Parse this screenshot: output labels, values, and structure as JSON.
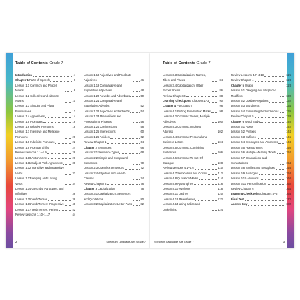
{
  "pages": [
    {
      "title": "Table of Contents",
      "grade": "Grade 7",
      "footer": "Spectrum Language Arts Grade 7",
      "page_number": "2",
      "columns": [
        [
          {
            "lead": "Introduction",
            "page": "4"
          },
          {
            "lead": "Chapter 1",
            "text": "Parts of Speech",
            "page": "6"
          },
          {
            "text": "Lesson 1.1 Common and Proper Nouns",
            "page": "6"
          },
          {
            "text": "Lesson 1.2 Collective and Abstract Nouns",
            "page": "10"
          },
          {
            "text": "Lesson 1.3 Singular and Plural Possessives",
            "page": "12"
          },
          {
            "text": "Lesson 1.4 Appositives",
            "page": "14"
          },
          {
            "text": "Lesson 1.5 Pronouns",
            "page": "16"
          },
          {
            "text": "Lesson 1.6 Relative Pronouns",
            "page": "18"
          },
          {
            "text": "Lesson 1.7 Intensive and Reflexive Pronouns",
            "page": "20"
          },
          {
            "text": "Lesson 1.8 Indefinite Pronouns",
            "page": "22"
          },
          {
            "text": "Lesson 1.9 Pronoun Shifts",
            "page": "24"
          },
          {
            "text": "Review Lessons 1.1–1.9",
            "page": "26"
          },
          {
            "text": "Lesson 1.10 Action Verbs",
            "page": "28"
          },
          {
            "text": "Lesson 1.11 Subject-Verb Agreement",
            "page": "30"
          },
          {
            "text": "Lesson 1.12 Transitive and Intransitive Verbs",
            "page": "32"
          },
          {
            "text": "Lesson 1.13 Helping and Linking Verbs",
            "page": "34"
          },
          {
            "text": "Lesson 1.14 Gerunds, Participles, and Infinitives",
            "page": "36"
          },
          {
            "text": "Lesson 1.15 Verb Tenses",
            "page": "38"
          },
          {
            "text": "Lesson 1.16 Verb Tenses: Progressive",
            "page": "40"
          },
          {
            "text": "Lesson 1.17 Verb Tenses: Perfect",
            "page": "42"
          },
          {
            "text": "Review Lessons 1.10–1.17",
            "page": "44"
          }
        ],
        [
          {
            "text": "Lesson 1.18 Adjectives and Predicate Adjectives",
            "page": "46"
          },
          {
            "text": "Lesson 1.19 Comparative and Superlative Adjectives",
            "page": "48"
          },
          {
            "text": "Lesson 1.20 Adverbs and Adverbials",
            "page": "50"
          },
          {
            "text": "Lesson 1.21 Comparative and Superlative Adverbs",
            "page": "52"
          },
          {
            "text": "Lesson 1.22 Adjectives and Adverbs",
            "page": "54"
          },
          {
            "text": "Lesson 1.23 Prepositions and Prepositional Phrases",
            "page": "56"
          },
          {
            "text": "Lesson 1.24 Conjunctions",
            "page": "58"
          },
          {
            "text": "Lesson 1.25 Interjections",
            "page": "60"
          },
          {
            "text": "Lesson 1.26 Articles",
            "page": "62"
          },
          {
            "text": "Review Chapter 1",
            "page": "64"
          },
          {
            "lead": "Chapter 2",
            "text": "Sentences",
            "page": "66"
          },
          {
            "text": "Lesson 2.1 Sentence Types",
            "page": "68"
          },
          {
            "text": "Lesson 2.2 Simple and Compound Sentences",
            "page": "70"
          },
          {
            "text": "Lesson 2.3 Complex Sentences",
            "page": "72"
          },
          {
            "text": "Lesson 2.4 Adjective and Adverb Clauses",
            "page": "74"
          },
          {
            "text": "Review Chapter 2",
            "page": "76"
          },
          {
            "lead": "Chapter 3",
            "text": "Capitalization",
            "page": "78"
          },
          {
            "text": "Lesson 3.1 Capitalization: Sentences and Quotations",
            "page": "80"
          },
          {
            "text": "Lesson 3.2 Capitalization: Letter Parts",
            "page": "82"
          }
        ]
      ]
    },
    {
      "title": "Table of Contents",
      "grade": "Grade 7",
      "footer": "Spectrum Language Arts Grade 7",
      "page_number": "3",
      "columns": [
        [
          {
            "text": "Lesson 3.3 Capitalization: Names, Titles, and Places",
            "page": "84"
          },
          {
            "text": "Lesson 3.4 Capitalization: Other Proper Nouns",
            "page": "86"
          },
          {
            "text": "Review Chapter 3",
            "page": "88"
          },
          {
            "lead": "Learning Checkpoint",
            "text": "Chapters 1–3",
            "page": "90"
          },
          {
            "lead": "Chapter 4",
            "text": "Punctuation",
            "page": "96"
          },
          {
            "text": "Lesson 4.1 Ending Punctuation Marks",
            "page": "98"
          },
          {
            "text": "Lesson 4.2 Commas: Series, Multiple Adjectives",
            "page": "100"
          },
          {
            "text": "Lesson 4.3 Commas: In Direct Address",
            "page": "102"
          },
          {
            "text": "Lesson 4.4 Commas: Personal and Business Letters",
            "page": "104"
          },
          {
            "text": "Lesson 4.5 Commas: Combining Sentences",
            "page": "106"
          },
          {
            "text": "Lesson 4.6 Commas: To Set Off Dialogue",
            "page": "108"
          },
          {
            "text": "Review Lessons 4.1–4.6",
            "page": "110"
          },
          {
            "text": "Lesson 4.7 Semicolons and Colons",
            "page": "112"
          },
          {
            "text": "Lesson 4.8 Quotation Marks",
            "page": "114"
          },
          {
            "text": "Lesson 4.9 Apostrophes",
            "page": "116"
          },
          {
            "text": "Lesson 4.10 Hyphens",
            "page": "118"
          },
          {
            "text": "Lesson 4.11 Dashes",
            "page": "120"
          },
          {
            "text": "Lesson 4.12 Parentheses",
            "page": "122"
          },
          {
            "text": "Lesson 4.13 Using Italics and Underlining",
            "page": "124"
          }
        ],
        [
          {
            "text": "Review Lessons 4.7–4.13",
            "page": "126"
          },
          {
            "text": "Review Chapter 4",
            "page": "128"
          },
          {
            "lead": "Chapter 5",
            "text": "Usage",
            "page": "128"
          },
          {
            "text": "Lesson 5.1 Dangling and Misplaced Modifiers",
            "page": "130"
          },
          {
            "text": "Lesson 5.2 Double Negatives",
            "page": "132"
          },
          {
            "text": "Lesson 5.3 Wordiness",
            "page": "134"
          },
          {
            "text": "Lesson 5.4 Eliminating Redundancies",
            "page": "136"
          },
          {
            "text": "Review Chapter 5",
            "page": "138"
          },
          {
            "lead": "Chapter 6",
            "text": "Word Study",
            "page": "140"
          },
          {
            "text": "Lesson 6.1 Roots",
            "page": "142"
          },
          {
            "text": "Lesson 6.2 Prefixes",
            "page": "144"
          },
          {
            "text": "Lesson 6.3 Suffixes",
            "page": "146"
          },
          {
            "text": "Lesson 6.4 Synonyms and Antonyms",
            "page": "148"
          },
          {
            "text": "Lesson 6.5 Homophones",
            "page": "150"
          },
          {
            "text": "Lesson 6.6 Multiple-Meaning Words",
            "page": "152"
          },
          {
            "text": "Lesson 6.7 Denotations and Connotations",
            "page": "154"
          },
          {
            "text": "Lesson 6.8 Similes and Metaphors",
            "page": "156"
          },
          {
            "text": "Lesson 6.9 Analogies",
            "page": "158"
          },
          {
            "text": "Lesson 6.10 Allusions",
            "page": "160"
          },
          {
            "text": "Lesson 6.11 Personification",
            "page": "162"
          },
          {
            "text": "Review Chapter 6",
            "page": "164"
          },
          {
            "lead": "Learning Checkpoint",
            "text": "Chapters 4–6",
            "page": "166"
          },
          {
            "lead": "Final Test",
            "page": "172"
          },
          {
            "lead": "Answer Key",
            "page": "182"
          }
        ]
      ]
    }
  ]
}
